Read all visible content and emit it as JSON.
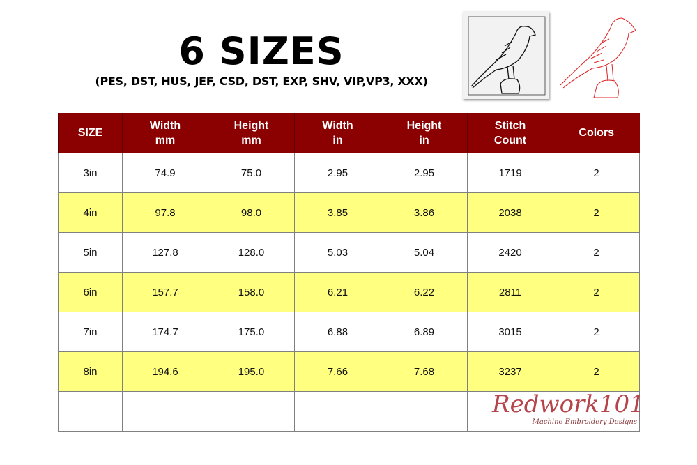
{
  "header": {
    "title": "6 SIZES",
    "formats": "(PES, DST, HUS, JEF, CSD, DST, EXP, SHV, VIP,VP3, XXX)"
  },
  "table": {
    "columns": [
      [
        "SIZE",
        ""
      ],
      [
        "Width",
        "mm"
      ],
      [
        "Height",
        "mm"
      ],
      [
        "Width",
        "in"
      ],
      [
        "Height",
        "in"
      ],
      [
        "Stitch",
        "Count"
      ],
      [
        "Colors",
        ""
      ]
    ],
    "rows": [
      [
        "3in",
        "74.9",
        "75.0",
        "2.95",
        "2.95",
        "1719",
        "2"
      ],
      [
        "4in",
        "97.8",
        "98.0",
        "3.85",
        "3.86",
        "2038",
        "2"
      ],
      [
        "5in",
        "127.8",
        "128.0",
        "5.03",
        "5.04",
        "2420",
        "2"
      ],
      [
        "6in",
        "157.7",
        "158.0",
        "6.21",
        "6.22",
        "2811",
        "2"
      ],
      [
        "7in",
        "174.7",
        "175.0",
        "6.88",
        "6.89",
        "3015",
        "2"
      ],
      [
        "8in",
        "194.6",
        "195.0",
        "7.66",
        "7.68",
        "3237",
        "2"
      ],
      [
        "",
        "",
        "",
        "",
        "",
        "",
        ""
      ]
    ]
  },
  "logo": {
    "name": "Redwork101",
    "tagline": "Machine Embroidery Designs"
  },
  "colors": {
    "header_bg": "#8b0000",
    "highlight_row": "#ffff80",
    "logo": "#b5454b"
  }
}
